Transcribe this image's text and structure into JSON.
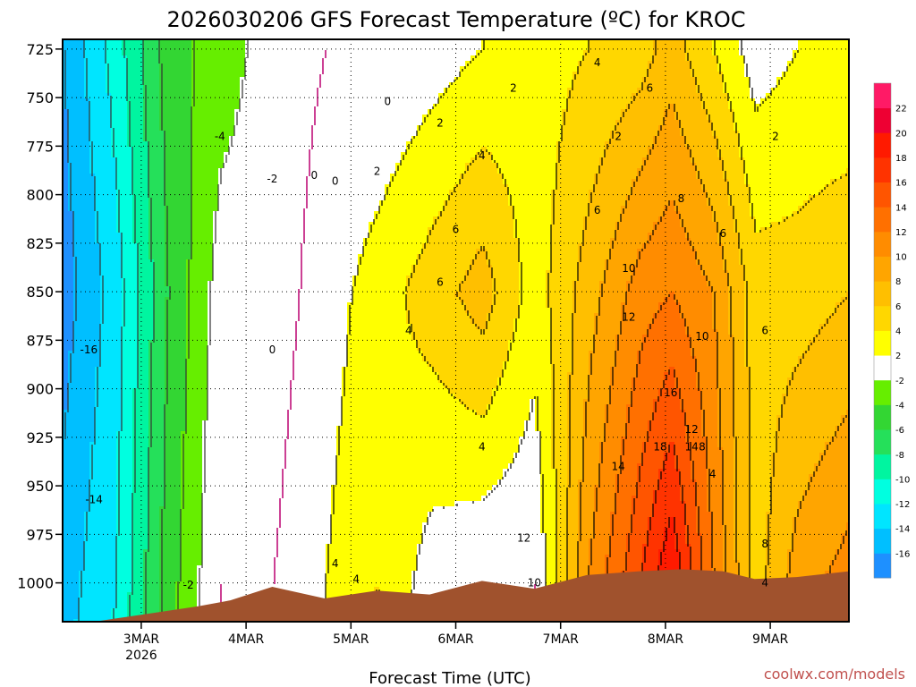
{
  "chart_data": {
    "type": "heatmap",
    "title": "2026030206 GFS Forecast Temperature (ºC) for KROC",
    "xlabel": "Forecast Time (UTC)",
    "ylabel": "",
    "credit": "coolwx.com/models",
    "y_axis": {
      "unit": "hPa",
      "inverted": true,
      "range": [
        1020,
        720
      ],
      "ticks": [
        725,
        750,
        775,
        800,
        825,
        850,
        875,
        900,
        925,
        950,
        975,
        1000
      ]
    },
    "x_axis": {
      "range_days": [
        0,
        7.5
      ],
      "ticks": [
        {
          "label": "3MAR",
          "sub": "2026",
          "day": 0.75
        },
        {
          "label": "4MAR",
          "sub": "",
          "day": 1.75
        },
        {
          "label": "5MAR",
          "sub": "",
          "day": 2.75
        },
        {
          "label": "6MAR",
          "sub": "",
          "day": 3.75
        },
        {
          "label": "7MAR",
          "sub": "",
          "day": 4.75
        },
        {
          "label": "8MAR",
          "sub": "",
          "day": 5.75
        },
        {
          "label": "9MAR",
          "sub": "",
          "day": 6.75
        }
      ]
    },
    "grid": true,
    "colorbar": {
      "levels": [
        -18,
        -16,
        -14,
        -12,
        -10,
        -8,
        -6,
        -4,
        -2,
        2,
        4,
        6,
        8,
        10,
        12,
        14,
        16,
        18,
        20,
        22,
        24
      ],
      "colors": [
        "#1e90ff",
        "#00bfff",
        "#00e5ff",
        "#00ffe0",
        "#00f5a0",
        "#25e05a",
        "#33d633",
        "#66ee00",
        "#ffffff",
        "#ffff00",
        "#ffd700",
        "#ffbf00",
        "#ffa500",
        "#ff8c00",
        "#ff7000",
        "#ff5500",
        "#ff3300",
        "#ff1a00",
        "#ee0033",
        "#ff1a66"
      ],
      "tick_labels": [
        "-16",
        "-14",
        "-12",
        "-10",
        "-8",
        "-6",
        "-4",
        "-2",
        "2",
        "4",
        "6",
        "8",
        "10",
        "12",
        "14",
        "16",
        "18",
        "20",
        "22"
      ]
    },
    "series": [
      {
        "name": "temperature_columns",
        "profiles": [
          {
            "day": 0.0,
            "t725": -16,
            "t850": -17,
            "t1000": -15
          },
          {
            "day": 0.5,
            "t725": -11,
            "t850": -13,
            "t1000": -12
          },
          {
            "day": 1.0,
            "t725": -5,
            "t850": -6,
            "t1000": -5
          },
          {
            "day": 1.5,
            "t725": -3,
            "t850": -1,
            "t1000": 0
          },
          {
            "day": 2.0,
            "t725": -1,
            "t850": -1,
            "t1000": 0
          },
          {
            "day": 2.5,
            "t725": 0,
            "t850": 1,
            "t1000": 2
          },
          {
            "day": 3.0,
            "t725": 0,
            "t850": 3,
            "t1000": 4
          },
          {
            "day": 3.5,
            "t725": 1,
            "t850": 5,
            "t1000": 1
          },
          {
            "day": 4.0,
            "t725": 2,
            "t850": 7,
            "t1000": 0
          },
          {
            "day": 4.5,
            "t725": 3,
            "t850": 3,
            "t1000": 0
          },
          {
            "day": 5.0,
            "t725": 4,
            "t850": 7,
            "t1000": 10
          },
          {
            "day": 5.5,
            "t725": 5,
            "t850": 11,
            "t1000": 16
          },
          {
            "day": 5.8,
            "t725": 7,
            "t850": 12,
            "t1000": 20
          },
          {
            "day": 6.2,
            "t725": 4,
            "t850": 10,
            "t1000": 12
          },
          {
            "day": 6.6,
            "t725": 1,
            "t850": 5,
            "t1000": 5
          },
          {
            "day": 7.0,
            "t725": 2,
            "t850": 5,
            "t1000": 9
          },
          {
            "day": 7.5,
            "t725": 2,
            "t850": 6,
            "t1000": 11
          }
        ]
      }
    ],
    "contour_labels": [
      "-16",
      "-14",
      "-4",
      "-2",
      "0",
      "0",
      "0",
      "0",
      "2",
      "2",
      "2",
      "2",
      "2",
      "4",
      "4",
      "4",
      "4",
      "4",
      "4",
      "4",
      "4",
      "6",
      "6",
      "6",
      "6",
      "6",
      "6",
      "8",
      "8",
      "8",
      "10",
      "10",
      "10",
      "12",
      "12",
      "12",
      "14",
      "14",
      "16",
      "18",
      "-2"
    ],
    "terrain_color": "#a0522d"
  }
}
